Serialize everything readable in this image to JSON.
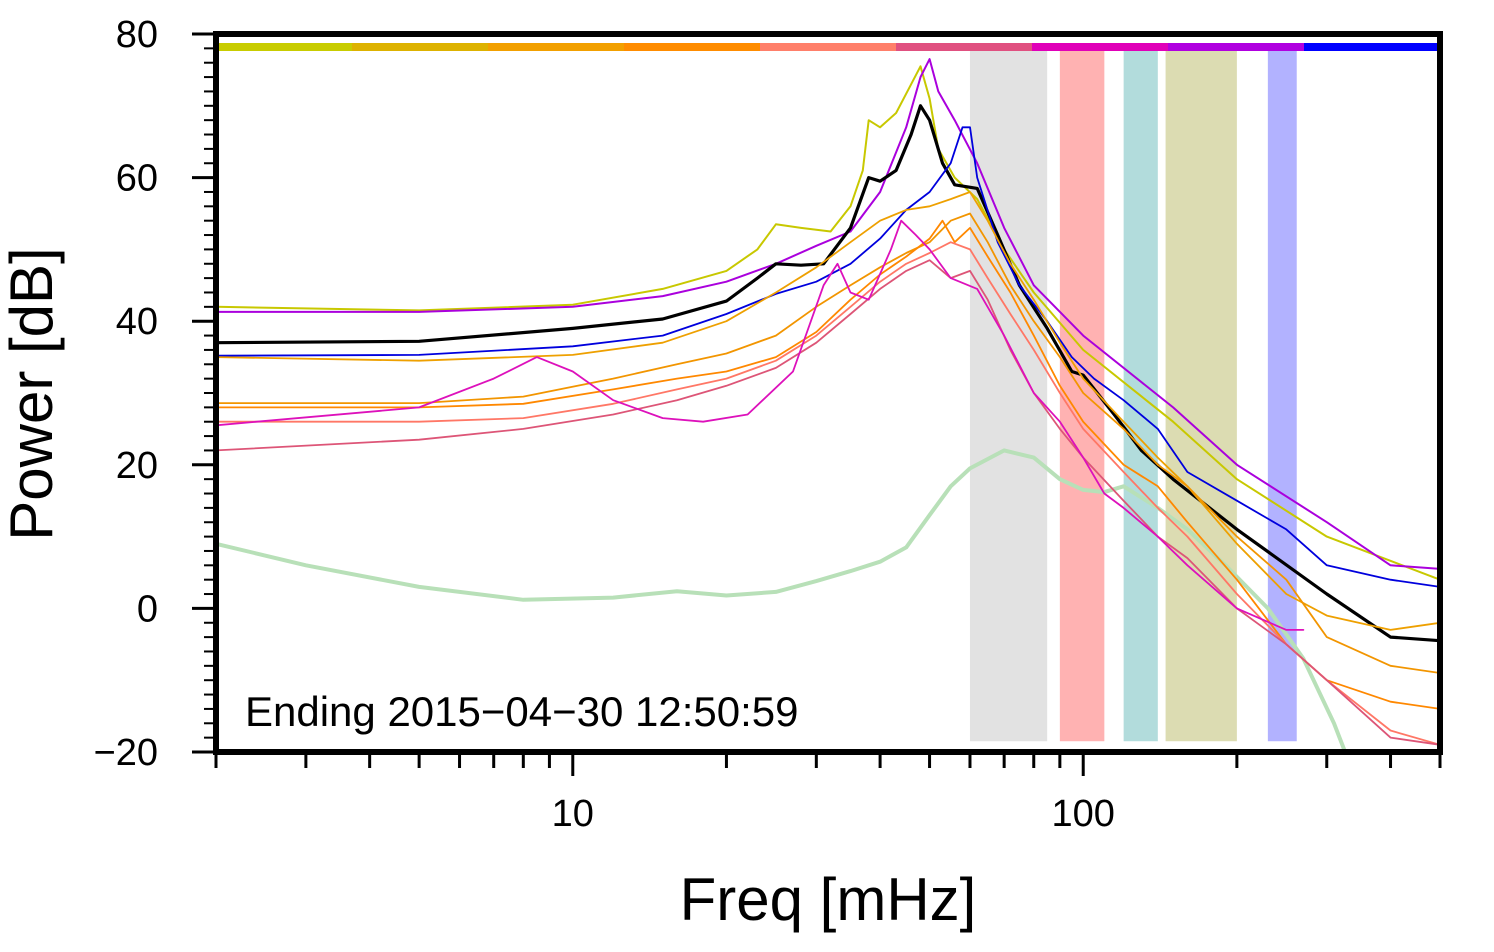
{
  "chart_data": {
    "type": "line",
    "xlabel": "Freq [mHz]",
    "ylabel": "Power [dB]",
    "x_scale": "log",
    "xlim": [
      2,
      500
    ],
    "ylim": [
      -20,
      80
    ],
    "x_ticks": [
      10,
      100
    ],
    "y_ticks": [
      -20,
      0,
      20,
      40,
      60,
      80
    ],
    "grid": false,
    "annotation": "Ending 2015−04−30 12:50:59",
    "top_color_bar": [
      "#c8cc00",
      "#ddb200",
      "#f2a000",
      "#ff8c00",
      "#ff7f6a",
      "#e05080",
      "#e000b8",
      "#b000e0",
      "#0000ff"
    ],
    "bands": [
      {
        "x0": 60,
        "x1": 85,
        "color": "#e2e2e2"
      },
      {
        "x0": 90,
        "x1": 110,
        "color": "#ffb2b2"
      },
      {
        "x0": 120,
        "x1": 140,
        "color": "#b2dcdc"
      },
      {
        "x0": 145,
        "x1": 200,
        "color": "#dcdcb2"
      },
      {
        "x0": 230,
        "x1": 262,
        "color": "#b2b2ff"
      }
    ],
    "series": [
      {
        "color": "#b8e0b8",
        "width": 4,
        "points": [
          [
            2,
            9
          ],
          [
            3,
            6
          ],
          [
            5,
            3
          ],
          [
            8,
            1.2
          ],
          [
            12,
            1.5
          ],
          [
            16,
            2.4
          ],
          [
            20,
            1.8
          ],
          [
            25,
            2.3
          ],
          [
            30,
            3.8
          ],
          [
            35,
            5.2
          ],
          [
            40,
            6.5
          ],
          [
            45,
            8.5
          ],
          [
            50,
            13
          ],
          [
            55,
            17
          ],
          [
            60,
            19.5
          ],
          [
            70,
            22
          ],
          [
            80,
            21
          ],
          [
            90,
            18
          ],
          [
            100,
            16.5
          ],
          [
            110,
            16.2
          ],
          [
            120,
            17
          ],
          [
            140,
            14
          ],
          [
            160,
            11
          ],
          [
            190,
            6
          ],
          [
            230,
            0
          ],
          [
            270,
            -7
          ],
          [
            310,
            -16
          ],
          [
            330,
            -21
          ]
        ]
      },
      {
        "color": "#c8c800",
        "width": 2,
        "points": [
          [
            2,
            42
          ],
          [
            5,
            41.5
          ],
          [
            10,
            42.3
          ],
          [
            15,
            44.5
          ],
          [
            20,
            47
          ],
          [
            23,
            50
          ],
          [
            25,
            53.5
          ],
          [
            28,
            53
          ],
          [
            32,
            52.5
          ],
          [
            35,
            56
          ],
          [
            37,
            61
          ],
          [
            38,
            68
          ],
          [
            40,
            67
          ],
          [
            43,
            69
          ],
          [
            46,
            73
          ],
          [
            48,
            75.5
          ],
          [
            50,
            71
          ],
          [
            52,
            64
          ],
          [
            56,
            60
          ],
          [
            62,
            57
          ],
          [
            70,
            50
          ],
          [
            80,
            44
          ],
          [
            100,
            36
          ],
          [
            150,
            26
          ],
          [
            200,
            18
          ],
          [
            300,
            10
          ],
          [
            500,
            4
          ]
        ]
      },
      {
        "color": "#aa00dd",
        "width": 2,
        "points": [
          [
            2,
            41.3
          ],
          [
            5,
            41.3
          ],
          [
            10,
            42
          ],
          [
            15,
            43.5
          ],
          [
            20,
            45.5
          ],
          [
            25,
            48
          ],
          [
            30,
            50.5
          ],
          [
            35,
            52.5
          ],
          [
            40,
            58
          ],
          [
            45,
            67
          ],
          [
            48,
            74
          ],
          [
            50,
            76.5
          ],
          [
            52,
            72
          ],
          [
            56,
            68
          ],
          [
            62,
            62
          ],
          [
            70,
            53
          ],
          [
            80,
            45
          ],
          [
            100,
            38
          ],
          [
            150,
            28
          ],
          [
            200,
            20
          ],
          [
            300,
            12
          ],
          [
            400,
            6
          ],
          [
            500,
            5.5
          ]
        ]
      },
      {
        "color": "#000000",
        "width": 3.2,
        "points": [
          [
            2,
            37
          ],
          [
            5,
            37.2
          ],
          [
            10,
            39
          ],
          [
            15,
            40.3
          ],
          [
            20,
            42.8
          ],
          [
            23,
            46
          ],
          [
            25,
            48
          ],
          [
            28,
            47.8
          ],
          [
            31,
            48
          ],
          [
            35,
            53
          ],
          [
            38,
            60
          ],
          [
            40,
            59.5
          ],
          [
            43,
            61
          ],
          [
            46,
            66
          ],
          [
            48,
            70
          ],
          [
            50,
            68
          ],
          [
            53,
            62
          ],
          [
            56,
            59
          ],
          [
            62,
            58.5
          ],
          [
            68,
            52
          ],
          [
            75,
            45
          ],
          [
            85,
            39
          ],
          [
            95,
            33
          ],
          [
            100,
            32.5
          ],
          [
            115,
            27
          ],
          [
            130,
            22
          ],
          [
            150,
            18
          ],
          [
            200,
            11
          ],
          [
            300,
            2
          ],
          [
            400,
            -4
          ],
          [
            500,
            -4.5
          ]
        ]
      },
      {
        "color": "#0000dd",
        "width": 1.8,
        "points": [
          [
            2,
            35.2
          ],
          [
            5,
            35.3
          ],
          [
            10,
            36.5
          ],
          [
            15,
            38
          ],
          [
            20,
            41
          ],
          [
            25,
            43.8
          ],
          [
            30,
            45.5
          ],
          [
            35,
            48
          ],
          [
            40,
            51.5
          ],
          [
            45,
            55.5
          ],
          [
            50,
            58
          ],
          [
            55,
            62
          ],
          [
            58,
            67
          ],
          [
            60,
            67
          ],
          [
            62,
            60
          ],
          [
            68,
            51
          ],
          [
            75,
            45
          ],
          [
            85,
            40
          ],
          [
            95,
            35
          ],
          [
            105,
            32
          ],
          [
            120,
            29
          ],
          [
            140,
            25
          ],
          [
            160,
            19
          ],
          [
            200,
            15
          ],
          [
            250,
            11
          ],
          [
            300,
            6
          ],
          [
            400,
            4
          ],
          [
            500,
            3
          ]
        ]
      },
      {
        "color": "#eea000",
        "width": 1.8,
        "points": [
          [
            2,
            35
          ],
          [
            5,
            34.5
          ],
          [
            10,
            35.3
          ],
          [
            15,
            37
          ],
          [
            20,
            40
          ],
          [
            25,
            44
          ],
          [
            30,
            47.5
          ],
          [
            35,
            51
          ],
          [
            40,
            54
          ],
          [
            45,
            55.5
          ],
          [
            50,
            56
          ],
          [
            55,
            57
          ],
          [
            60,
            58
          ],
          [
            65,
            54
          ],
          [
            72,
            48
          ],
          [
            80,
            43
          ],
          [
            90,
            37
          ],
          [
            100,
            32
          ],
          [
            120,
            26
          ],
          [
            140,
            21
          ],
          [
            160,
            17
          ],
          [
            200,
            9
          ],
          [
            250,
            2
          ],
          [
            300,
            -1
          ],
          [
            400,
            -3
          ],
          [
            500,
            -2
          ]
        ]
      },
      {
        "color": "#f29500",
        "width": 1.8,
        "points": [
          [
            2,
            28.6
          ],
          [
            5,
            28.6
          ],
          [
            8,
            29.5
          ],
          [
            12,
            32
          ],
          [
            16,
            34
          ],
          [
            20,
            35.5
          ],
          [
            25,
            38
          ],
          [
            30,
            42
          ],
          [
            35,
            45
          ],
          [
            40,
            47.5
          ],
          [
            45,
            49.5
          ],
          [
            50,
            51
          ],
          [
            55,
            54
          ],
          [
            60,
            55
          ],
          [
            65,
            51
          ],
          [
            72,
            45
          ],
          [
            80,
            40
          ],
          [
            90,
            35
          ],
          [
            100,
            30
          ],
          [
            120,
            25
          ],
          [
            140,
            20
          ],
          [
            160,
            17
          ],
          [
            200,
            10
          ],
          [
            250,
            4
          ],
          [
            300,
            -4
          ],
          [
            400,
            -8
          ],
          [
            500,
            -9
          ]
        ]
      },
      {
        "color": "#ff8800",
        "width": 1.8,
        "points": [
          [
            2,
            28
          ],
          [
            5,
            28
          ],
          [
            8,
            28.5
          ],
          [
            12,
            30.5
          ],
          [
            16,
            32
          ],
          [
            20,
            33
          ],
          [
            25,
            35
          ],
          [
            30,
            38.5
          ],
          [
            35,
            43
          ],
          [
            40,
            46.5
          ],
          [
            45,
            49
          ],
          [
            50,
            51.5
          ],
          [
            53,
            54
          ],
          [
            56,
            51
          ],
          [
            60,
            53
          ],
          [
            65,
            49
          ],
          [
            72,
            44
          ],
          [
            80,
            38
          ],
          [
            90,
            31
          ],
          [
            100,
            26
          ],
          [
            120,
            20
          ],
          [
            140,
            17
          ],
          [
            160,
            12
          ],
          [
            200,
            4
          ],
          [
            250,
            -5
          ],
          [
            300,
            -10
          ],
          [
            400,
            -13
          ],
          [
            500,
            -14
          ]
        ]
      },
      {
        "color": "#ff7766",
        "width": 1.8,
        "points": [
          [
            2,
            26
          ],
          [
            5,
            26
          ],
          [
            8,
            26.5
          ],
          [
            12,
            28.5
          ],
          [
            16,
            30.5
          ],
          [
            20,
            32
          ],
          [
            25,
            34.5
          ],
          [
            30,
            38
          ],
          [
            35,
            42
          ],
          [
            40,
            45.5
          ],
          [
            45,
            48
          ],
          [
            50,
            49.5
          ],
          [
            55,
            51
          ],
          [
            60,
            50
          ],
          [
            65,
            46
          ],
          [
            72,
            41
          ],
          [
            80,
            36
          ],
          [
            90,
            30
          ],
          [
            100,
            25
          ],
          [
            120,
            19
          ],
          [
            140,
            14
          ],
          [
            160,
            10
          ],
          [
            200,
            2
          ],
          [
            250,
            -5
          ],
          [
            300,
            -10
          ],
          [
            400,
            -17
          ],
          [
            500,
            -19
          ]
        ]
      },
      {
        "color": "#dd5577",
        "width": 1.8,
        "points": [
          [
            2,
            22
          ],
          [
            5,
            23.5
          ],
          [
            8,
            25
          ],
          [
            12,
            27
          ],
          [
            16,
            29
          ],
          [
            20,
            31
          ],
          [
            25,
            33.5
          ],
          [
            30,
            37
          ],
          [
            35,
            41
          ],
          [
            40,
            44.5
          ],
          [
            45,
            47
          ],
          [
            50,
            48.5
          ],
          [
            55,
            46
          ],
          [
            60,
            47
          ],
          [
            65,
            43
          ],
          [
            72,
            36
          ],
          [
            80,
            30
          ],
          [
            90,
            25
          ],
          [
            100,
            21
          ],
          [
            120,
            15
          ],
          [
            140,
            10
          ],
          [
            160,
            7
          ],
          [
            200,
            0
          ],
          [
            250,
            -5
          ],
          [
            300,
            -10
          ],
          [
            400,
            -18
          ],
          [
            500,
            -19
          ]
        ]
      },
      {
        "color": "#dd11bb",
        "width": 1.8,
        "points": [
          [
            2,
            25.5
          ],
          [
            5,
            28
          ],
          [
            7,
            32
          ],
          [
            8.5,
            35
          ],
          [
            10,
            33
          ],
          [
            12,
            29
          ],
          [
            15,
            26.5
          ],
          [
            18,
            26
          ],
          [
            22,
            27
          ],
          [
            27,
            33
          ],
          [
            31,
            45
          ],
          [
            33,
            48
          ],
          [
            35,
            44
          ],
          [
            38,
            43
          ],
          [
            42,
            50
          ],
          [
            44,
            54
          ],
          [
            47,
            52
          ],
          [
            50,
            50
          ],
          [
            55,
            46
          ],
          [
            62,
            44.5
          ],
          [
            70,
            38
          ],
          [
            80,
            30
          ],
          [
            90,
            26
          ],
          [
            100,
            21
          ],
          [
            110,
            16
          ],
          [
            120,
            14
          ],
          [
            140,
            10
          ],
          [
            160,
            6
          ],
          [
            200,
            0
          ],
          [
            250,
            -3
          ],
          [
            270,
            -3
          ]
        ]
      }
    ]
  }
}
